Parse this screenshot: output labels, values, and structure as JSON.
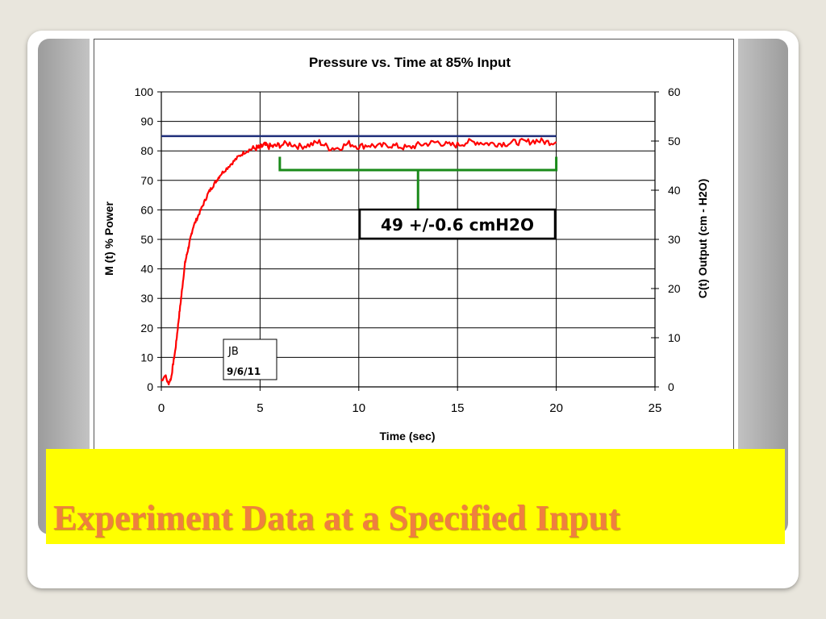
{
  "slide": {
    "title": "Experiment Data at a Specified Input"
  },
  "colors": {
    "data_line": "#ff0000",
    "reference_line": "#1f2f7a",
    "bracket": "#1a8a1a",
    "band": "#ffff00",
    "title_text": "#f07f3f"
  },
  "chart_data": {
    "type": "line",
    "title": "Pressure vs. Time at 85% Input",
    "xlabel": "Time (sec)",
    "ylabel": "M (t) % Power",
    "y2label": "C(t) Output (cm - H2O)",
    "xlim": [
      0,
      25
    ],
    "ylim": [
      0,
      100
    ],
    "y2lim": [
      0,
      60
    ],
    "x_ticks": [
      "0",
      "5",
      "10",
      "15",
      "20",
      "25"
    ],
    "y_ticks": [
      "0",
      "10",
      "20",
      "30",
      "40",
      "50",
      "60",
      "70",
      "80",
      "90",
      "100"
    ],
    "y2_ticks": [
      "0",
      "10",
      "20",
      "30",
      "40",
      "50",
      "60"
    ],
    "grid": true,
    "series": [
      {
        "name": "",
        "axis": "y",
        "x": [
          0,
          0.2,
          0.35,
          0.5,
          0.6,
          0.7,
          0.8,
          0.9,
          1.0,
          1.1,
          1.2,
          1.3,
          1.4,
          1.5,
          1.6,
          1.8,
          2.0,
          2.2,
          2.4,
          2.6,
          2.8,
          3.0,
          3.3,
          3.6,
          3.9,
          4.2,
          4.5,
          4.8,
          5.0,
          5.2,
          5.4,
          5.7,
          6.0,
          6.5,
          7.0,
          7.5,
          8.0,
          8.5,
          9.0,
          9.5,
          10.0,
          10.5,
          11.0,
          11.5,
          12.0,
          12.5,
          13.0,
          13.5,
          14.0,
          14.5,
          15.0,
          15.5,
          16.0,
          16.5,
          17.0,
          17.5,
          18.0,
          18.5,
          19.0,
          19.5,
          20.0
        ],
        "y": [
          2,
          4,
          1,
          3,
          8,
          12,
          18,
          24,
          30,
          36,
          42,
          45,
          48,
          51,
          54,
          57,
          60,
          63,
          66,
          68,
          70,
          72,
          74,
          76,
          78,
          79.5,
          80.5,
          81,
          81,
          82,
          81.5,
          81.5,
          82,
          82.5,
          81.5,
          82,
          83,
          81,
          81,
          82.5,
          81.5,
          82,
          81.5,
          82,
          81.5,
          81,
          82,
          82.5,
          83,
          82,
          82,
          83,
          83,
          82.5,
          82.5,
          82.5,
          83,
          83,
          83.5,
          83,
          83
        ]
      },
      {
        "name": "",
        "axis": "y",
        "x": [
          0,
          20
        ],
        "y": [
          85,
          85
        ]
      }
    ],
    "annotations": [
      {
        "text": "49 +/-0.6 cmH2O",
        "kind": "bracket-label",
        "x_range": [
          6,
          20
        ]
      },
      {
        "text": "JB",
        "kind": "signature"
      },
      {
        "text": "9/6/11",
        "kind": "signature-date"
      }
    ]
  }
}
